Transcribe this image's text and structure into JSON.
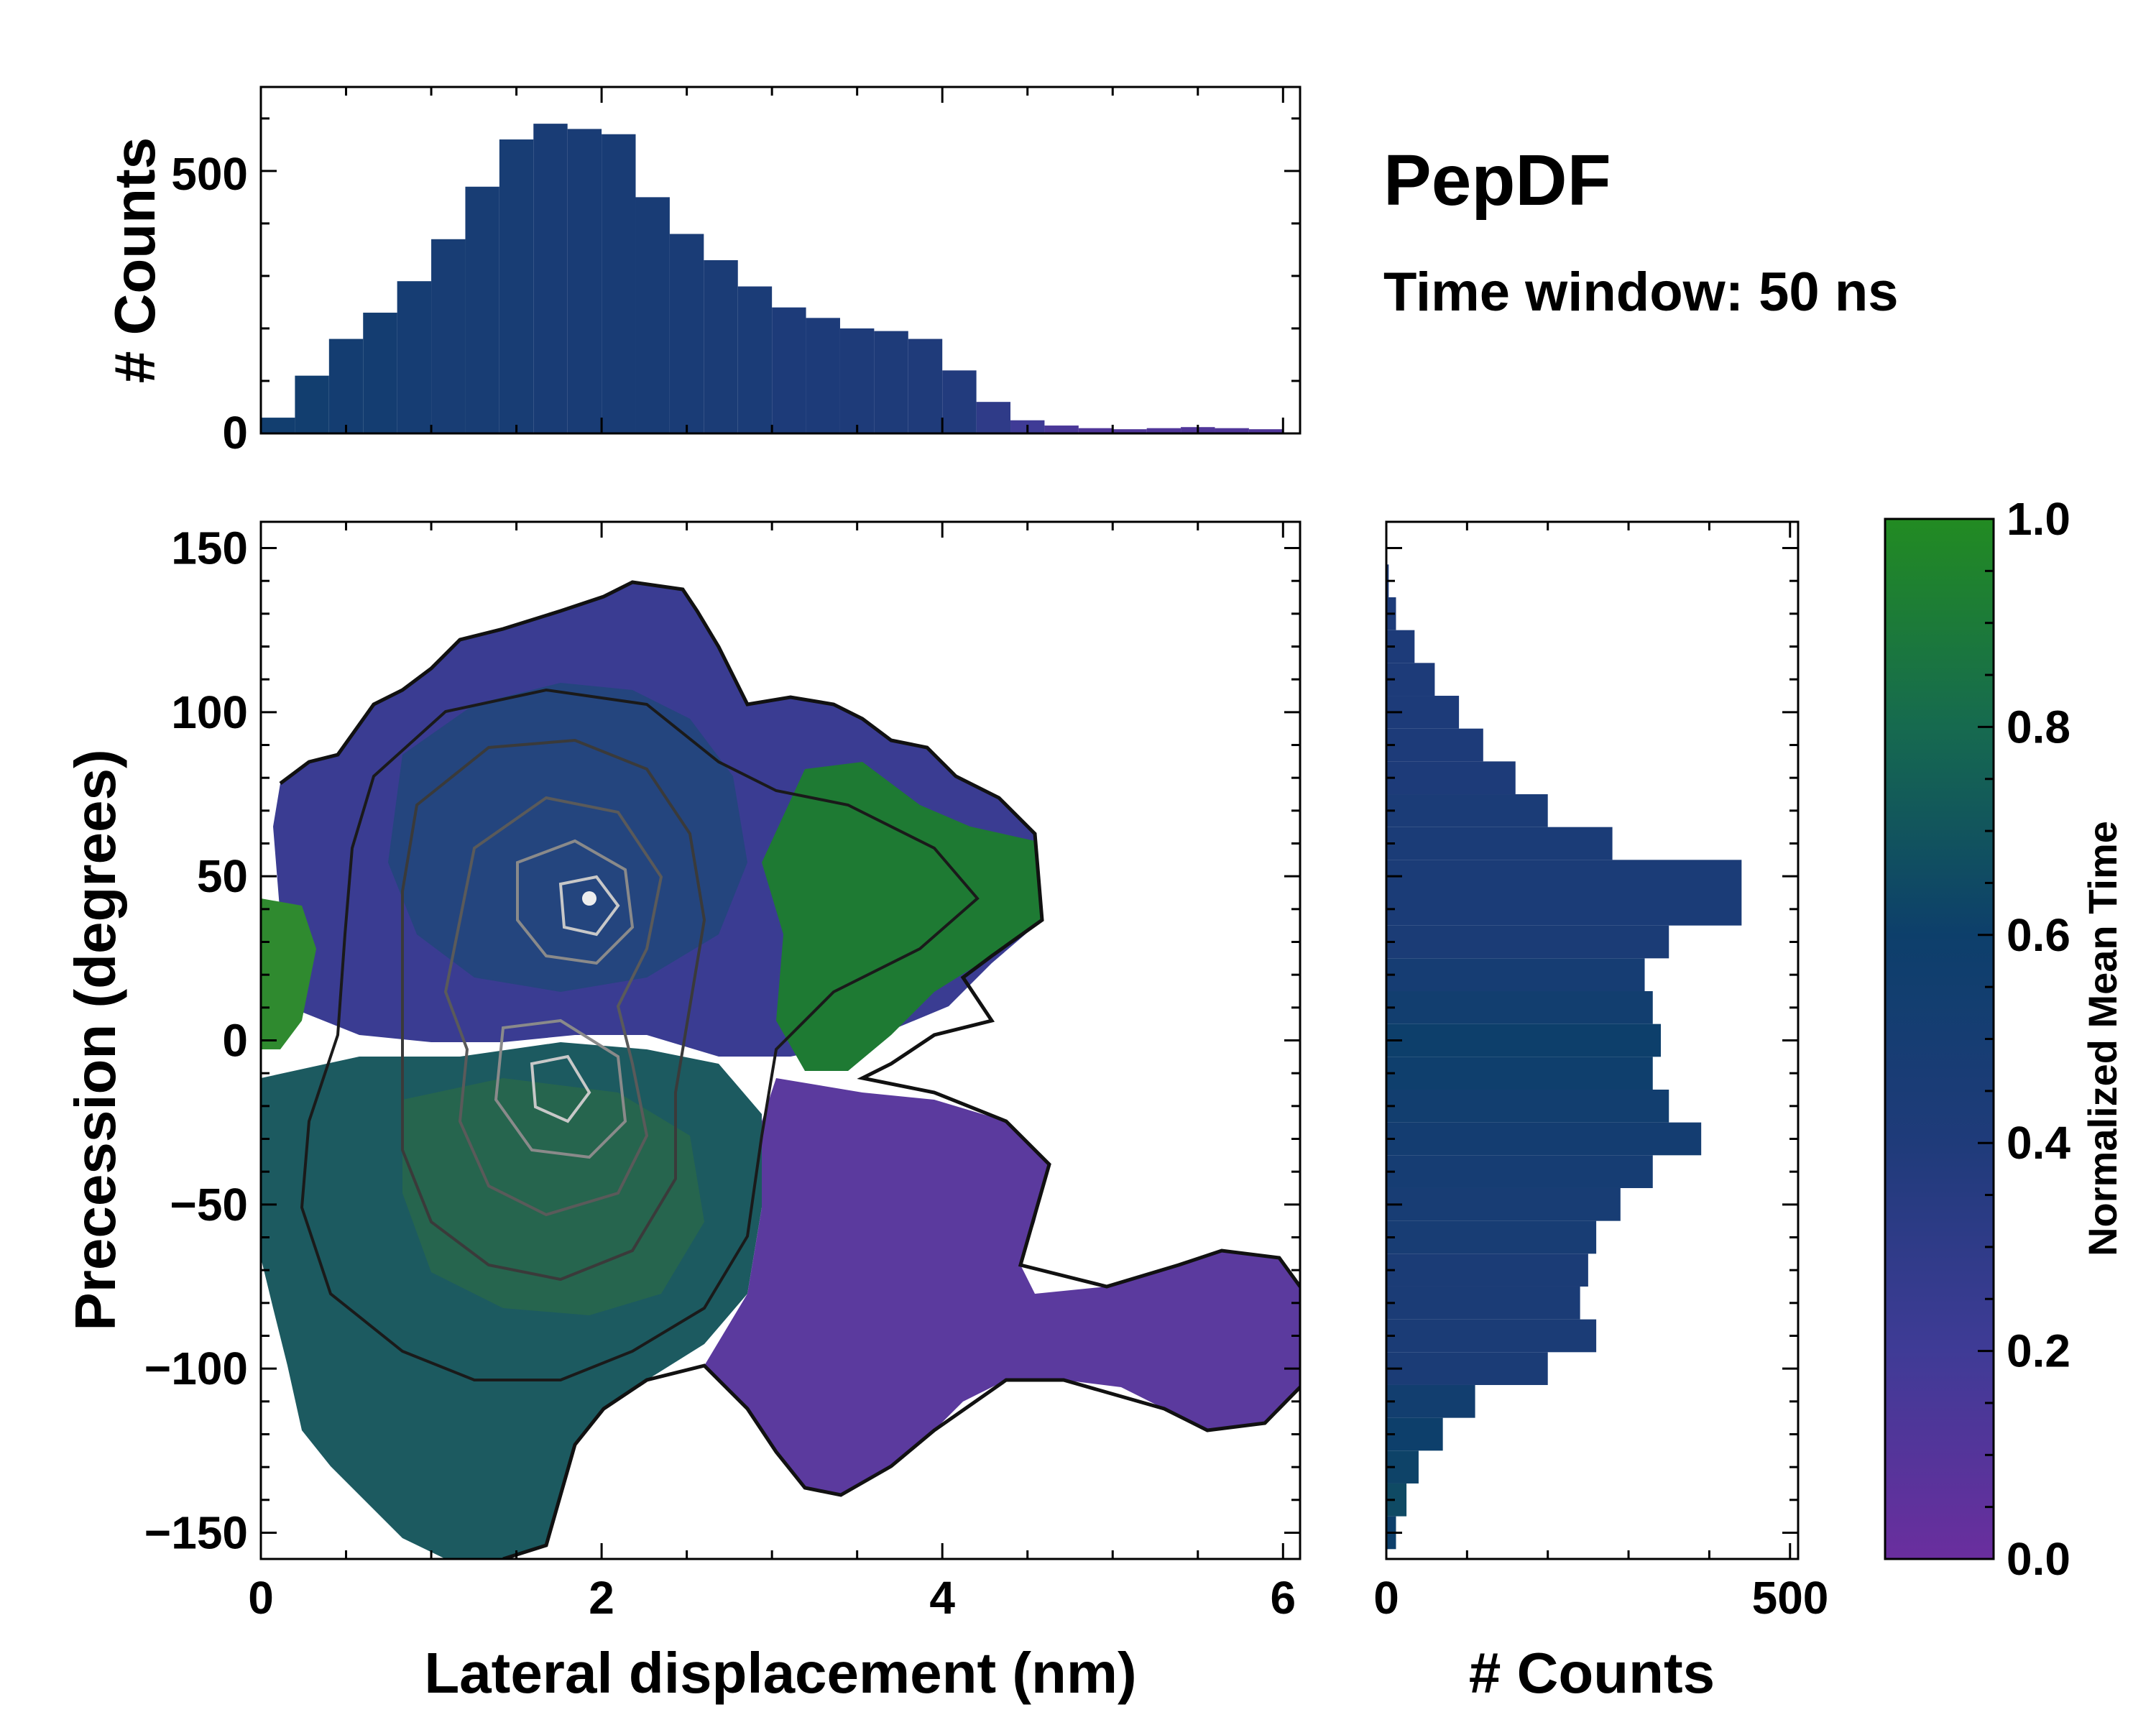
{
  "chart_data": [
    {
      "type": "bar",
      "name": "top-marginal-histogram",
      "xlabel": "",
      "ylabel": "# Counts",
      "xlim": [
        0,
        6.1
      ],
      "ylim": [
        0,
        660
      ],
      "yticks": [
        0,
        500
      ],
      "x_centers": [
        0.1,
        0.3,
        0.5,
        0.7,
        0.9,
        1.1,
        1.3,
        1.5,
        1.7,
        1.9,
        2.1,
        2.3,
        2.5,
        2.7,
        2.9,
        3.1,
        3.3,
        3.5,
        3.7,
        3.9,
        4.1,
        4.3,
        4.5,
        4.7,
        4.9,
        5.1,
        5.3,
        5.5,
        5.7,
        5.9
      ],
      "values": [
        30,
        110,
        180,
        230,
        290,
        370,
        470,
        560,
        590,
        580,
        570,
        450,
        380,
        330,
        280,
        240,
        220,
        200,
        195,
        180,
        120,
        60,
        25,
        15,
        10,
        8,
        10,
        12,
        10,
        8
      ],
      "mean_time": [
        0.55,
        0.55,
        0.52,
        0.52,
        0.5,
        0.48,
        0.48,
        0.48,
        0.47,
        0.47,
        0.47,
        0.47,
        0.46,
        0.45,
        0.44,
        0.42,
        0.42,
        0.41,
        0.41,
        0.4,
        0.38,
        0.3,
        0.2,
        0.15,
        0.12,
        0.12,
        0.12,
        0.12,
        0.12,
        0.12
      ]
    },
    {
      "type": "heatmap",
      "name": "main-2d-histogram",
      "xlabel": "Lateral displacement (nm)",
      "ylabel": "Precession (degrees)",
      "xlim": [
        0,
        6.1
      ],
      "ylim": [
        -158,
        158
      ],
      "xticks": [
        0,
        2,
        4,
        6
      ],
      "xtick_labels": [
        "0",
        "2",
        "4",
        "6"
      ],
      "yticks": [
        -150,
        -100,
        -50,
        0,
        50,
        100,
        150
      ],
      "ytick_labels": [
        "−150",
        "−100",
        "−50",
        "0",
        "50",
        "100",
        "150"
      ],
      "color_encoding": "Normalized Mean Time",
      "regions": [
        {
          "label": "upper-central",
          "x_range": [
            0.1,
            4.6
          ],
          "y_range": [
            5,
            135
          ],
          "mean_time": 0.3
        },
        {
          "label": "upper-right-green",
          "x_range": [
            3.0,
            4.6
          ],
          "y_range": [
            10,
            85
          ],
          "mean_time": 0.85
        },
        {
          "label": "left-green-strip",
          "x_range": [
            0,
            0.4
          ],
          "y_range": [
            -5,
            45
          ],
          "mean_time": 0.9
        },
        {
          "label": "lower-central",
          "x_range": [
            0,
            3.0
          ],
          "y_range": [
            -150,
            0
          ],
          "mean_time": 0.6
        },
        {
          "label": "lower-right-purple",
          "x_range": [
            2.7,
            6.1
          ],
          "y_range": [
            -140,
            -10
          ],
          "mean_time": 0.12
        }
      ],
      "density_peaks": [
        {
          "x": 1.8,
          "y": 40
        },
        {
          "x": 1.6,
          "y": -20
        },
        {
          "x": 2.0,
          "y": -30
        }
      ]
    },
    {
      "type": "bar",
      "orientation": "horizontal",
      "name": "right-marginal-histogram",
      "xlabel": "# Counts",
      "ylabel": "",
      "xlim": [
        0,
        510
      ],
      "ylim": [
        -158,
        158
      ],
      "xticks": [
        0,
        500
      ],
      "y_centers": [
        -150,
        -140,
        -130,
        -120,
        -110,
        -100,
        -90,
        -80,
        -70,
        -60,
        -50,
        -40,
        -30,
        -20,
        -10,
        0,
        10,
        20,
        30,
        40,
        50,
        60,
        70,
        80,
        90,
        100,
        110,
        120,
        130,
        140
      ],
      "values": [
        12,
        25,
        40,
        70,
        110,
        200,
        260,
        240,
        250,
        260,
        290,
        330,
        390,
        350,
        330,
        340,
        330,
        320,
        350,
        440,
        440,
        280,
        200,
        160,
        120,
        90,
        60,
        35,
        12,
        3
      ],
      "mean_time": [
        0.6,
        0.65,
        0.62,
        0.6,
        0.55,
        0.45,
        0.45,
        0.45,
        0.45,
        0.48,
        0.48,
        0.5,
        0.52,
        0.55,
        0.58,
        0.6,
        0.55,
        0.5,
        0.45,
        0.44,
        0.44,
        0.44,
        0.44,
        0.42,
        0.42,
        0.42,
        0.42,
        0.42,
        0.42,
        0.42
      ]
    }
  ],
  "annotation": {
    "title": "PepDF",
    "subtitle": "Time window: 50 ns"
  },
  "colorbar": {
    "label": "Normalized Mean Time",
    "range": [
      0.0,
      1.0
    ],
    "ticks": [
      "0.0",
      "0.2",
      "0.4",
      "0.6",
      "0.8",
      "1.0"
    ],
    "colors": [
      "#6a2e9e",
      "#3f3b96",
      "#1f3b7a",
      "#0d3f6b",
      "#166a4f",
      "#228b22"
    ]
  }
}
